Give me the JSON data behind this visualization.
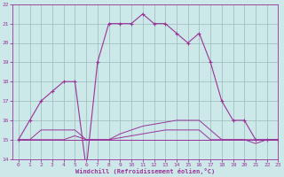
{
  "bg_color": "#cce8e8",
  "grid_color": "#99bbbb",
  "line_color": "#993399",
  "x_hours": [
    0,
    1,
    2,
    3,
    4,
    5,
    6,
    7,
    8,
    9,
    10,
    11,
    12,
    13,
    14,
    15,
    16,
    17,
    18,
    19,
    20,
    21,
    22,
    23
  ],
  "temp_main": [
    15,
    16,
    17,
    17.5,
    18,
    18,
    13.5,
    19,
    21,
    21,
    21,
    21.5,
    21,
    21,
    20.5,
    20,
    20.5,
    19,
    17,
    16,
    16,
    15,
    15,
    15
  ],
  "temp_flat1": [
    15,
    15,
    15,
    15,
    15,
    15,
    15,
    15,
    15,
    15,
    15,
    15,
    15,
    15,
    15,
    15,
    15,
    15,
    15,
    15,
    15,
    15,
    15,
    15
  ],
  "temp_flat2": [
    15,
    15,
    15,
    15,
    15,
    15.2,
    15,
    15,
    15,
    15.1,
    15.2,
    15.3,
    15.4,
    15.5,
    15.5,
    15.5,
    15.5,
    15,
    15,
    15,
    15,
    14.8,
    15,
    15
  ],
  "temp_flat3": [
    15,
    15,
    15.5,
    15.5,
    15.5,
    15.5,
    15,
    15,
    15,
    15.3,
    15.5,
    15.7,
    15.8,
    15.9,
    16,
    16,
    16,
    15.5,
    15,
    15,
    15,
    15,
    15,
    15
  ],
  "temp_flat4": [
    15,
    15,
    15,
    15,
    15,
    15,
    15,
    15,
    15,
    15,
    15,
    15,
    15,
    15,
    15,
    15,
    15,
    15,
    15,
    15,
    15,
    15,
    15,
    15
  ],
  "ylim": [
    14,
    22
  ],
  "xlim": [
    -0.5,
    23
  ],
  "yticks": [
    14,
    15,
    16,
    17,
    18,
    19,
    20,
    21,
    22
  ],
  "xtick_labels": [
    "0",
    "1",
    "2",
    "3",
    "4",
    "5",
    "6",
    "7",
    "8",
    "9",
    "10",
    "11",
    "12",
    "13",
    "14",
    "15",
    "16",
    "17",
    "18",
    "19",
    "20",
    "21",
    "22",
    "23"
  ],
  "xlabel": "Windchill (Refroidissement éolien,°C)",
  "font_family": "monospace"
}
